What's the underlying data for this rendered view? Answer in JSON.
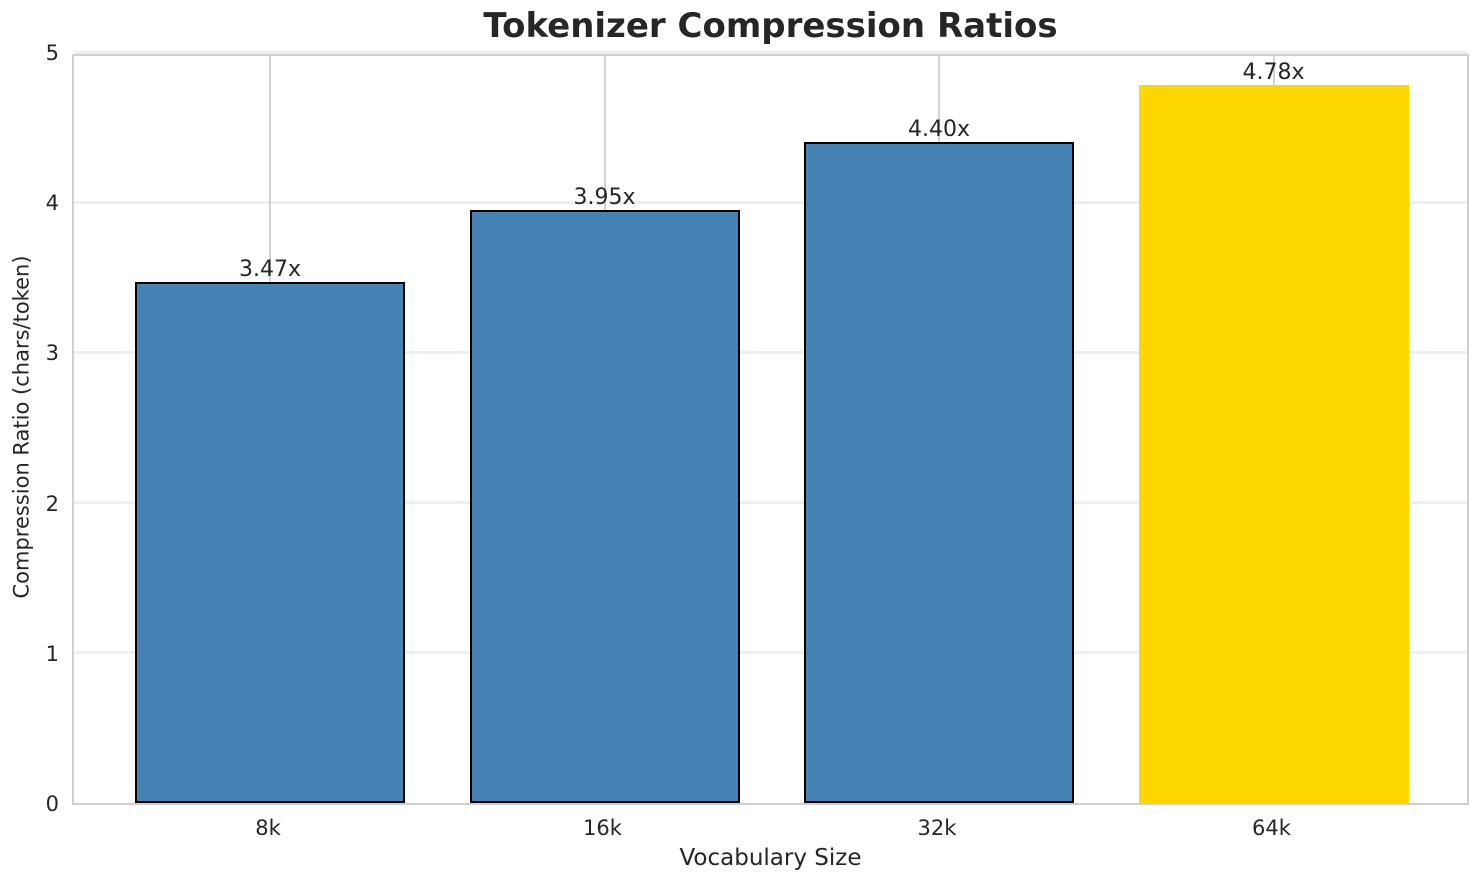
{
  "chart_data": {
    "type": "bar",
    "title": "Tokenizer Compression Ratios",
    "xlabel": "Vocabulary Size",
    "ylabel": "Compression Ratio (chars/token)",
    "categories": [
      "8k",
      "16k",
      "32k",
      "64k"
    ],
    "values": [
      3.47,
      3.95,
      4.4,
      4.78
    ],
    "value_labels": [
      "3.47x",
      "3.95x",
      "4.40x",
      "4.78x"
    ],
    "bar_colors": [
      "#4682b4",
      "#4682b4",
      "#4682b4",
      "#ffd700"
    ],
    "bar_edge_colors": [
      "#000000",
      "#000000",
      "#000000",
      "none"
    ],
    "highlight_index": 3,
    "ylim": [
      0,
      5
    ],
    "yticks": [
      0,
      1,
      2,
      3,
      4,
      5
    ],
    "grid": true,
    "legend": "none",
    "background": "#ffffff"
  }
}
